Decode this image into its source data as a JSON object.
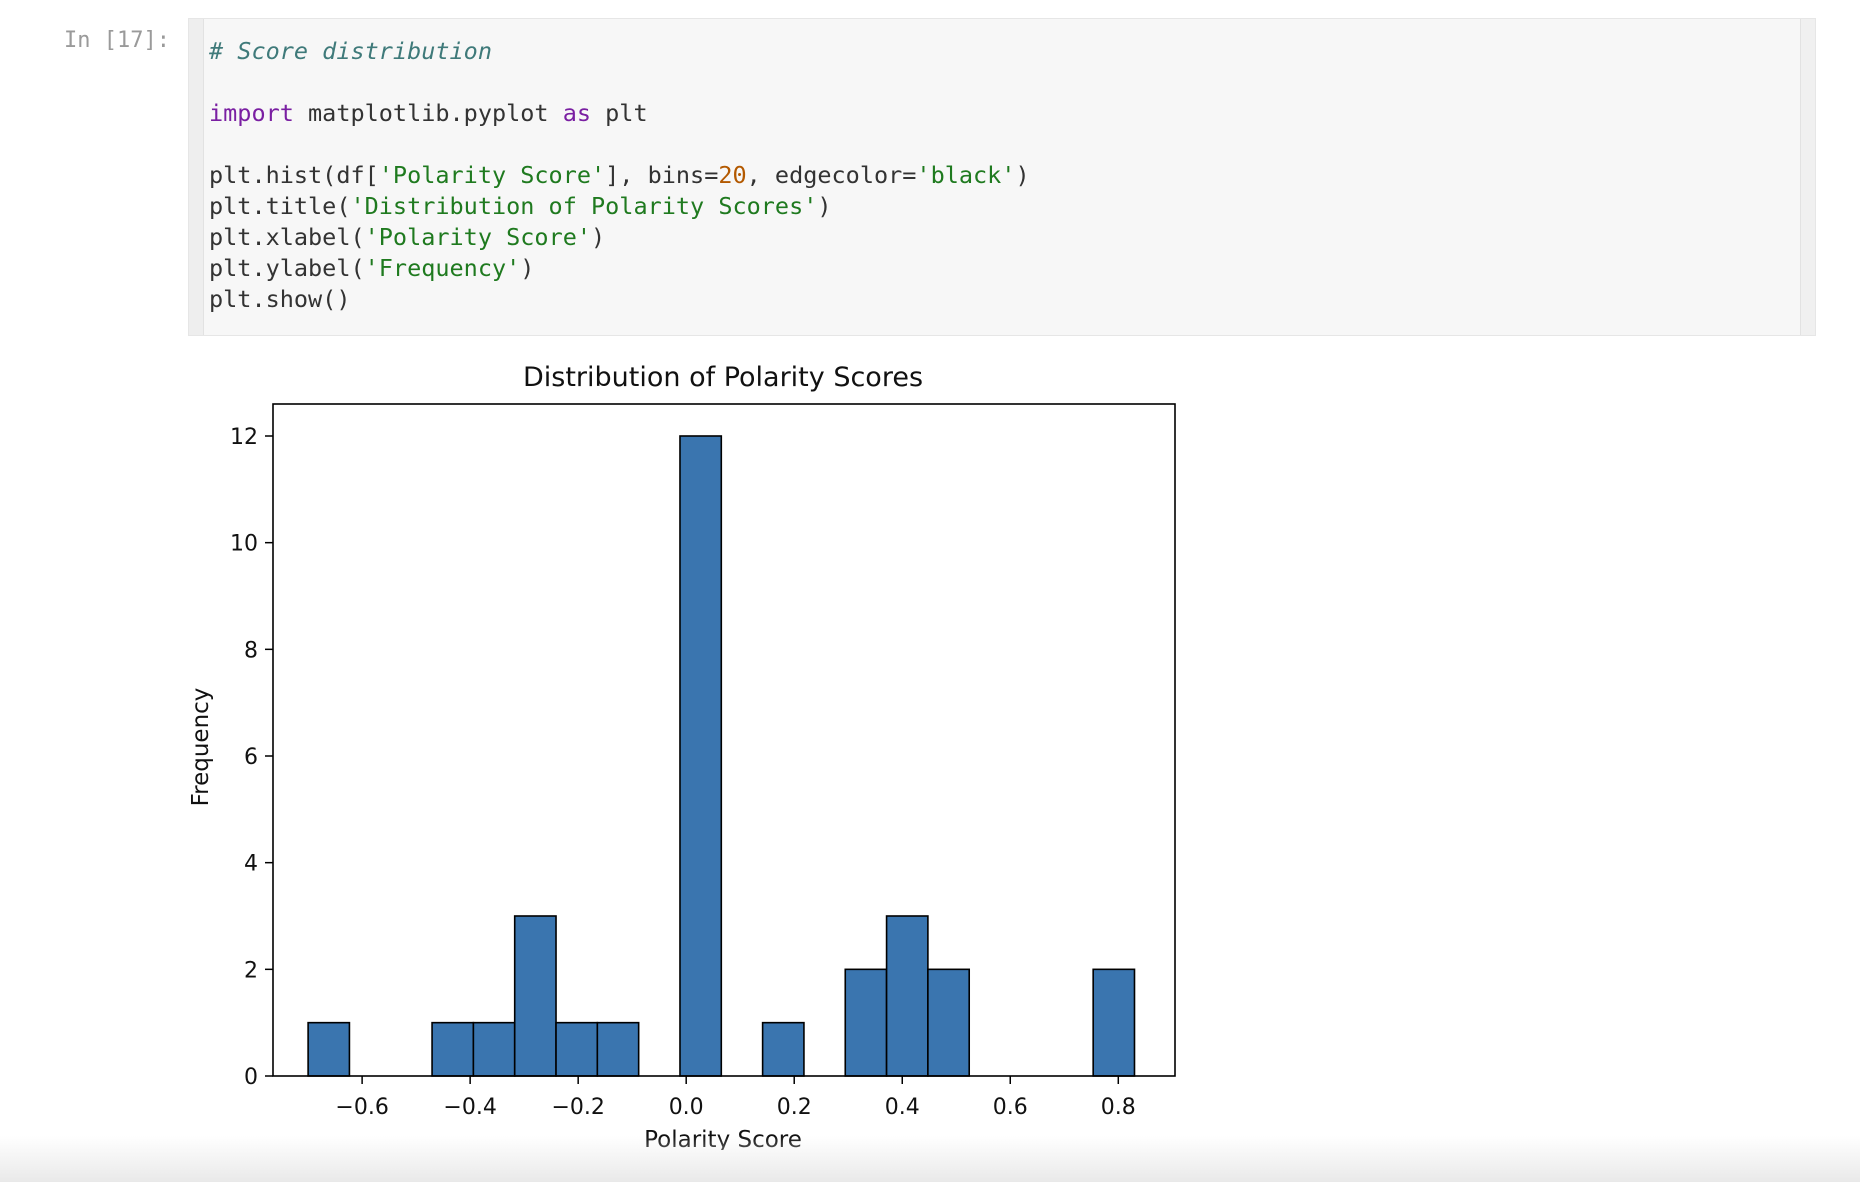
{
  "cell": {
    "prompt": "In [17]:",
    "code_lines": [
      [
        {
          "t": "# Score distribution",
          "c": "comment"
        }
      ],
      [],
      [
        {
          "t": "import",
          "c": "kw"
        },
        {
          "t": " matplotlib.pyplot "
        },
        {
          "t": "as",
          "c": "kw"
        },
        {
          "t": " plt"
        }
      ],
      [],
      [
        {
          "t": "plt.hist(df["
        },
        {
          "t": "'Polarity Score'",
          "c": "str"
        },
        {
          "t": "], bins="
        },
        {
          "t": "20",
          "c": "num"
        },
        {
          "t": ", edgecolor="
        },
        {
          "t": "'black'",
          "c": "str"
        },
        {
          "t": ")"
        }
      ],
      [
        {
          "t": "plt.title("
        },
        {
          "t": "'Distribution of Polarity Scores'",
          "c": "str"
        },
        {
          "t": ")"
        }
      ],
      [
        {
          "t": "plt.xlabel("
        },
        {
          "t": "'Polarity Score'",
          "c": "str"
        },
        {
          "t": ")"
        }
      ],
      [
        {
          "t": "plt.ylabel("
        },
        {
          "t": "'Frequency'",
          "c": "str"
        },
        {
          "t": ")"
        }
      ],
      [
        {
          "t": "plt.show()"
        }
      ]
    ]
  },
  "chart_data": {
    "type": "bar",
    "title": "Distribution of Polarity Scores",
    "xlabel": "Polarity Score",
    "ylabel": "Frequency",
    "xlim": [
      -0.765,
      0.905
    ],
    "ylim": [
      0,
      12.6
    ],
    "xticks": [
      -0.6,
      -0.4,
      -0.2,
      0.0,
      0.2,
      0.4,
      0.6,
      0.8
    ],
    "xtick_labels": [
      "−0.6",
      "−0.4",
      "−0.2",
      "0.0",
      "0.2",
      "0.4",
      "0.6",
      "0.8"
    ],
    "yticks": [
      0,
      2,
      4,
      6,
      8,
      10,
      12
    ],
    "bin_edges": [
      -0.7,
      -0.6235,
      -0.547,
      -0.4705,
      -0.394,
      -0.3175,
      -0.241,
      -0.1645,
      -0.088,
      -0.0115,
      0.065,
      0.1415,
      0.218,
      0.2945,
      0.371,
      0.4475,
      0.524,
      0.6005,
      0.677,
      0.7535,
      0.83
    ],
    "values": [
      1,
      0,
      0,
      1,
      1,
      3,
      1,
      1,
      0,
      12,
      0,
      1,
      0,
      2,
      3,
      2,
      0,
      0,
      0,
      2
    ],
    "bar_color": "#3a75af",
    "edge_color": "#000000",
    "grid": false,
    "legend": "none"
  }
}
